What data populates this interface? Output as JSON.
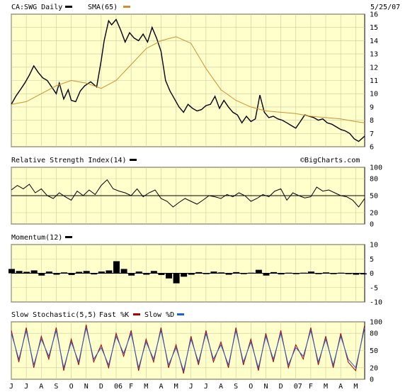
{
  "header": {
    "symbol_label": "CA:SWG Daily",
    "sma_label": "SMA(65)",
    "date": "5/25/07"
  },
  "watermark": "©BigCharts.com",
  "colors": {
    "background": "#ffffff",
    "plot_bg": "#ffffcc",
    "grid": "#c9c9a0",
    "price": "#000000",
    "sma": "#d09030",
    "fast_k": "#b00000",
    "slow_d": "#2060d0"
  },
  "x_axis": {
    "months": [
      "J",
      "J",
      "A",
      "S",
      "O",
      "N",
      "D",
      "06",
      "F",
      "M",
      "A",
      "M",
      "J",
      "J",
      "A",
      "S",
      "O",
      "N",
      "D",
      "07",
      "F",
      "M",
      "A",
      "M"
    ]
  },
  "chart_data": [
    {
      "type": "line",
      "name": "price",
      "title": "CA:SWG Daily",
      "ylim": [
        6,
        16
      ],
      "yticks": [
        6,
        7,
        8,
        9,
        10,
        11,
        12,
        13,
        14,
        15,
        16
      ],
      "x_unit": "month index (0 = June 2005)",
      "series": [
        {
          "name": "CA:SWG Daily",
          "x": [
            0,
            0.3,
            0.6,
            0.9,
            1.2,
            1.5,
            1.8,
            2.1,
            2.4,
            2.7,
            3.0,
            3.2,
            3.5,
            3.8,
            4.0,
            4.3,
            4.6,
            4.9,
            5.3,
            5.7,
            6.0,
            6.2,
            6.5,
            6.7,
            7.0,
            7.3,
            7.6,
            7.9,
            8.2,
            8.5,
            8.8,
            9.1,
            9.4,
            9.7,
            10.0,
            10.3,
            10.6,
            10.9,
            11.2,
            11.5,
            11.8,
            12.1,
            12.4,
            12.7,
            13.0,
            13.3,
            13.6,
            13.9,
            14.2,
            14.5,
            14.8,
            15.1,
            15.4,
            15.7,
            16.0,
            16.3,
            16.6,
            16.9,
            17.2,
            17.5,
            17.8,
            18.1,
            18.4,
            18.7,
            19.0,
            19.3,
            19.6,
            19.9,
            20.2,
            20.5,
            20.8,
            21.1,
            21.4,
            21.7,
            22.0,
            22.3,
            22.6,
            22.9,
            23.2,
            23.6
          ],
          "values": [
            9.2,
            9.8,
            10.3,
            10.8,
            11.4,
            12.1,
            11.6,
            11.2,
            11.0,
            10.5,
            10.0,
            10.8,
            9.6,
            10.3,
            9.5,
            9.4,
            10.2,
            10.6,
            10.9,
            10.5,
            12.5,
            14.0,
            15.5,
            15.2,
            15.6,
            14.8,
            13.9,
            14.6,
            14.2,
            14.0,
            14.5,
            13.9,
            15.0,
            14.2,
            13.2,
            11.0,
            10.2,
            9.6,
            9.0,
            8.6,
            9.2,
            8.9,
            8.7,
            8.8,
            9.1,
            9.2,
            9.8,
            8.9,
            9.5,
            9.0,
            8.6,
            8.4,
            7.8,
            8.3,
            7.9,
            8.1,
            9.9,
            8.6,
            8.2,
            8.3,
            8.1,
            8.0,
            7.8,
            7.6,
            7.4,
            7.9,
            8.4,
            8.3,
            8.2,
            8.0,
            8.1,
            7.8,
            7.7,
            7.5,
            7.3,
            7.2,
            7.0,
            6.6,
            6.4,
            6.8
          ]
        },
        {
          "name": "SMA(65)",
          "x": [
            0,
            1,
            2,
            3,
            4,
            5,
            6,
            7,
            8,
            9,
            10,
            11,
            12,
            13,
            14,
            15,
            16,
            17,
            18,
            19,
            20,
            21,
            22,
            23,
            23.6
          ],
          "values": [
            9.2,
            9.4,
            10.0,
            10.6,
            11.0,
            10.8,
            10.4,
            11.0,
            12.2,
            13.4,
            14.0,
            14.3,
            13.8,
            11.9,
            10.3,
            9.5,
            9.0,
            8.7,
            8.6,
            8.5,
            8.3,
            8.2,
            8.1,
            7.9,
            7.8
          ]
        }
      ]
    },
    {
      "type": "line",
      "name": "rsi",
      "title": "Relative Strength Index(14)",
      "ylim": [
        0,
        100
      ],
      "yticks": [
        0,
        20,
        50,
        80,
        100
      ],
      "reference_line": 50,
      "series": [
        {
          "name": "Relative Strength Index(14)",
          "x": [
            0,
            0.4,
            0.8,
            1.2,
            1.6,
            2.0,
            2.4,
            2.8,
            3.2,
            3.6,
            4.0,
            4.4,
            4.8,
            5.2,
            5.6,
            6.0,
            6.4,
            6.8,
            7.2,
            7.6,
            8.0,
            8.4,
            8.8,
            9.2,
            9.6,
            10.0,
            10.4,
            10.8,
            11.2,
            11.6,
            12.0,
            12.4,
            12.8,
            13.2,
            13.6,
            14.0,
            14.4,
            14.8,
            15.2,
            15.6,
            16.0,
            16.4,
            16.8,
            17.2,
            17.6,
            18.0,
            18.4,
            18.8,
            19.2,
            19.6,
            20.0,
            20.4,
            20.8,
            21.2,
            21.6,
            22.0,
            22.4,
            22.8,
            23.2,
            23.6
          ],
          "values": [
            60,
            68,
            62,
            70,
            55,
            62,
            50,
            45,
            55,
            48,
            42,
            58,
            50,
            60,
            52,
            68,
            78,
            62,
            58,
            55,
            50,
            62,
            48,
            55,
            60,
            45,
            40,
            30,
            38,
            45,
            40,
            35,
            42,
            50,
            48,
            45,
            52,
            48,
            55,
            50,
            40,
            45,
            52,
            48,
            58,
            62,
            42,
            55,
            50,
            46,
            48,
            65,
            58,
            60,
            55,
            50,
            48,
            42,
            30,
            45
          ]
        }
      ]
    },
    {
      "type": "bar",
      "name": "momentum",
      "title": "Momentum(12)",
      "ylim": [
        -10,
        10
      ],
      "yticks": [
        -10,
        -5,
        0,
        5,
        10
      ],
      "x": [
        0,
        0.5,
        1,
        1.5,
        2,
        2.5,
        3,
        3.5,
        4,
        4.5,
        5,
        5.5,
        6,
        6.5,
        7,
        7.5,
        8,
        8.5,
        9,
        9.5,
        10,
        10.5,
        11,
        11.5,
        12,
        12.5,
        13,
        13.5,
        14,
        14.5,
        15,
        15.5,
        16,
        16.5,
        17,
        17.5,
        18,
        18.5,
        19,
        19.5,
        20,
        20.5,
        21,
        21.5,
        22,
        22.5,
        23,
        23.5
      ],
      "values": [
        1.5,
        0.8,
        0.5,
        1.0,
        -0.8,
        0.6,
        -0.5,
        0.3,
        -0.6,
        0.5,
        0.8,
        -0.4,
        0.6,
        1.0,
        4.2,
        1.5,
        -0.8,
        0.6,
        -0.5,
        0.8,
        -0.6,
        -1.8,
        -3.5,
        -1.2,
        -0.5,
        0.4,
        -0.3,
        0.6,
        0.3,
        -0.5,
        0.4,
        -0.3,
        0.2,
        1.2,
        -0.8,
        0.4,
        -0.4,
        0.2,
        -0.3,
        0.2,
        0.6,
        -0.3,
        0.3,
        -0.3,
        0.2,
        -0.3,
        -0.5,
        -0.4
      ]
    },
    {
      "type": "line",
      "name": "stochastic",
      "title": "Slow Stochastic(5,5)",
      "ylim": [
        0,
        100
      ],
      "yticks": [
        0,
        20,
        50,
        80,
        100
      ],
      "series": [
        {
          "name": "Fast %K",
          "x": [
            0,
            0.5,
            1,
            1.5,
            2,
            2.5,
            3,
            3.5,
            4,
            4.5,
            5,
            5.5,
            6,
            6.5,
            7,
            7.5,
            8,
            8.5,
            9,
            9.5,
            10,
            10.5,
            11,
            11.5,
            12,
            12.5,
            13,
            13.5,
            14,
            14.5,
            15,
            15.5,
            16,
            16.5,
            17,
            17.5,
            18,
            18.5,
            19,
            19.5,
            20,
            20.5,
            21,
            21.5,
            22,
            22.5,
            23,
            23.6
          ],
          "values": [
            85,
            30,
            90,
            20,
            75,
            35,
            90,
            15,
            70,
            25,
            95,
            30,
            60,
            20,
            80,
            40,
            85,
            15,
            70,
            30,
            90,
            20,
            60,
            10,
            75,
            25,
            85,
            30,
            65,
            20,
            90,
            25,
            70,
            15,
            80,
            30,
            85,
            20,
            60,
            35,
            90,
            25,
            75,
            20,
            80,
            30,
            15,
            95
          ]
        },
        {
          "name": "Slow %D",
          "x": [
            0,
            0.5,
            1,
            1.5,
            2,
            2.5,
            3,
            3.5,
            4,
            4.5,
            5,
            5.5,
            6,
            6.5,
            7,
            7.5,
            8,
            8.5,
            9,
            9.5,
            10,
            10.5,
            11,
            11.5,
            12,
            12.5,
            13,
            13.5,
            14,
            14.5,
            15,
            15.5,
            16,
            16.5,
            17,
            17.5,
            18,
            18.5,
            19,
            19.5,
            20,
            20.5,
            21,
            21.5,
            22,
            22.5,
            23,
            23.6
          ],
          "values": [
            80,
            35,
            85,
            25,
            70,
            40,
            85,
            20,
            65,
            30,
            90,
            35,
            55,
            25,
            75,
            45,
            80,
            20,
            65,
            35,
            85,
            25,
            55,
            15,
            70,
            30,
            80,
            35,
            60,
            25,
            85,
            30,
            65,
            20,
            75,
            35,
            80,
            25,
            55,
            40,
            85,
            30,
            70,
            25,
            75,
            35,
            20,
            90
          ]
        }
      ]
    }
  ]
}
